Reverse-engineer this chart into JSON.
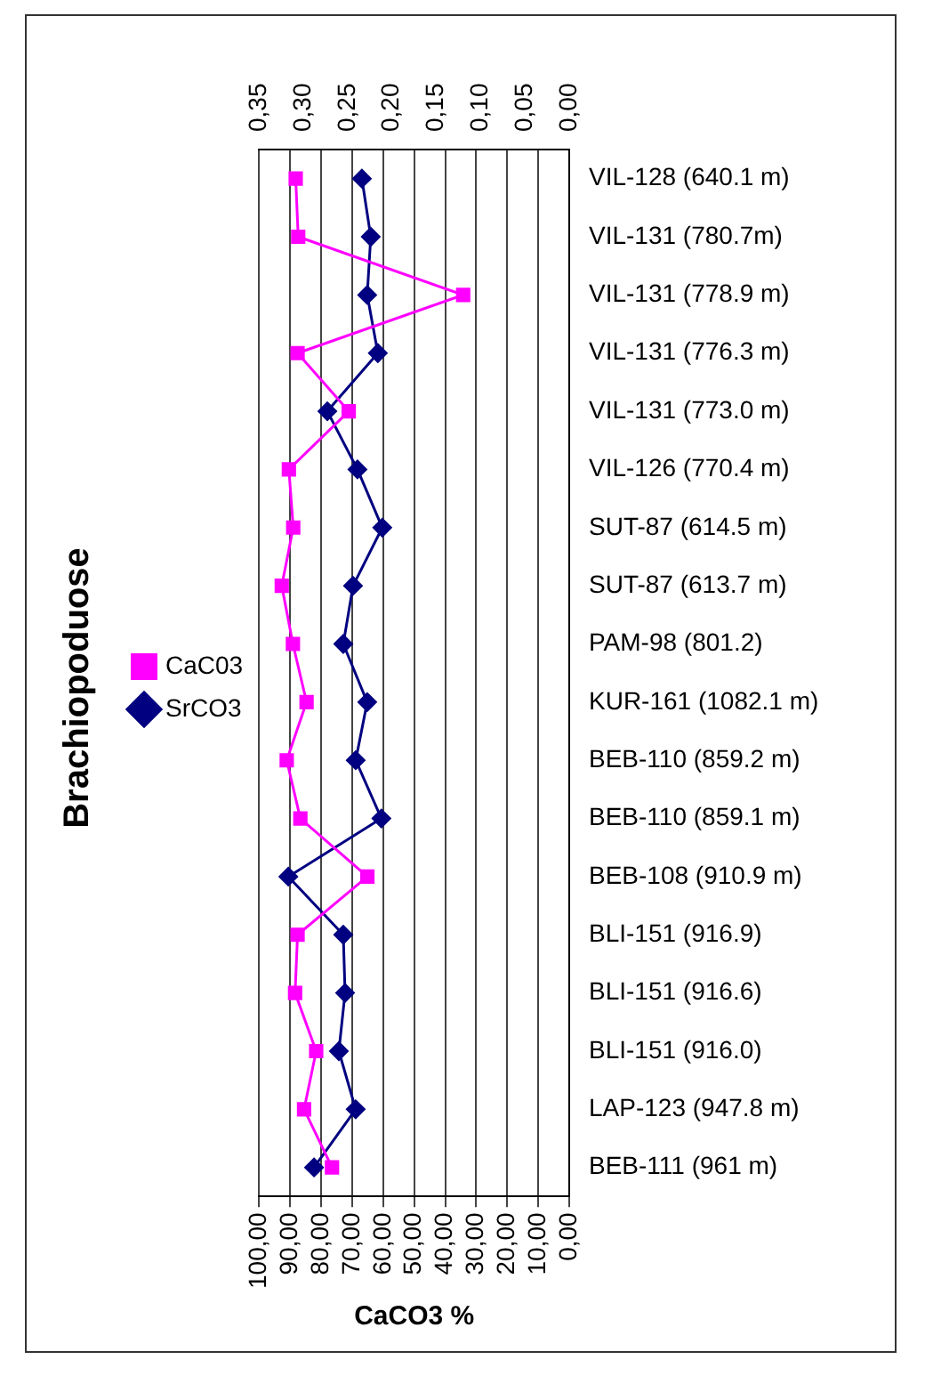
{
  "chart_data": {
    "type": "line",
    "title": "Brachiopoduose",
    "xlabel": "CaCO3 %",
    "orientation": "horizontal",
    "categories": [
      "VIL-128 (640.1 m)",
      "VIL-131 (780.7m)",
      "VIL-131 (778.9 m)",
      "VIL-131 (776.3 m)",
      "VIL-131 (773.0 m)",
      "VIL-126 (770.4 m)",
      "SUT-87 (614.5 m)",
      "SUT-87 (613.7 m)",
      "PAM-98 (801.2)",
      "KUR-161 (1082.1 m)",
      "BEB-110 (859.2 m)",
      "BEB-110 (859.1 m)",
      "BEB-108 (910.9 m)",
      "BLI-151 (916.9)",
      "BLI-151 (916.6)",
      "BLI-151 (916.0)",
      "LAP-123 (947.8 m)",
      "BEB-111 (961 m)"
    ],
    "series": [
      {
        "name": "CaC03",
        "color": "#ff00ff",
        "marker": "square",
        "values": [
          88.2,
          87.4,
          34.2,
          87.6,
          71.1,
          90.4,
          89.0,
          92.7,
          89.1,
          84.7,
          91.1,
          86.7,
          65.1,
          87.6,
          88.4,
          81.6,
          85.5,
          76.5
        ]
      },
      {
        "name": "SrCO3",
        "color": "#000080",
        "marker": "diamond",
        "axis": "x2",
        "values": [
          0.234,
          0.224,
          0.228,
          0.216,
          0.273,
          0.239,
          0.211,
          0.244,
          0.255,
          0.228,
          0.241,
          0.212,
          0.317,
          0.255,
          0.253,
          0.26,
          0.241,
          0.288
        ]
      }
    ],
    "xlim": [
      100,
      0
    ],
    "xticks": [
      {
        "value": 100,
        "label": "100,00"
      },
      {
        "value": 90,
        "label": "90,00"
      },
      {
        "value": 80,
        "label": "80,00"
      },
      {
        "value": 70,
        "label": "70,00"
      },
      {
        "value": 60,
        "label": "60,00"
      },
      {
        "value": 50,
        "label": "50,00"
      },
      {
        "value": 40,
        "label": "40,00"
      },
      {
        "value": 30,
        "label": "30,00"
      },
      {
        "value": 20,
        "label": "20,00"
      },
      {
        "value": 10,
        "label": "10,00"
      },
      {
        "value": 0,
        "label": "0,00"
      }
    ],
    "x2lim": [
      0.35,
      0
    ],
    "x2ticks": [
      {
        "value": 0.35,
        "label": "0,35"
      },
      {
        "value": 0.3,
        "label": "0,30"
      },
      {
        "value": 0.25,
        "label": "0,25"
      },
      {
        "value": 0.2,
        "label": "0,20"
      },
      {
        "value": 0.15,
        "label": "0,15"
      },
      {
        "value": 0.1,
        "label": "0,10"
      },
      {
        "value": 0.05,
        "label": "0,05"
      },
      {
        "value": 0,
        "label": "0,00"
      }
    ],
    "grid": "x",
    "legend": "left"
  }
}
